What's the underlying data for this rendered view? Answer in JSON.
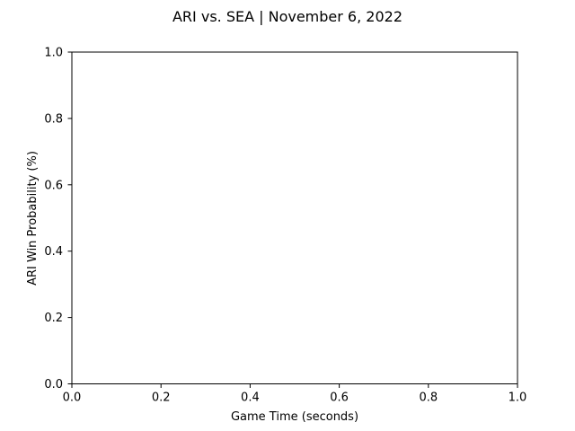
{
  "chart_data": {
    "type": "line",
    "title": "ARI vs. SEA | November 6, 2022",
    "xlabel": "Game Time (seconds)",
    "ylabel": "ARI Win Probability (%)",
    "xlim": [
      0.0,
      1.0
    ],
    "ylim": [
      0.0,
      1.0
    ],
    "x_ticks": [
      "0.0",
      "0.2",
      "0.4",
      "0.6",
      "0.8",
      "1.0"
    ],
    "y_ticks": [
      "0.0",
      "0.2",
      "0.4",
      "0.6",
      "0.8",
      "1.0"
    ],
    "grid": false,
    "series": []
  }
}
